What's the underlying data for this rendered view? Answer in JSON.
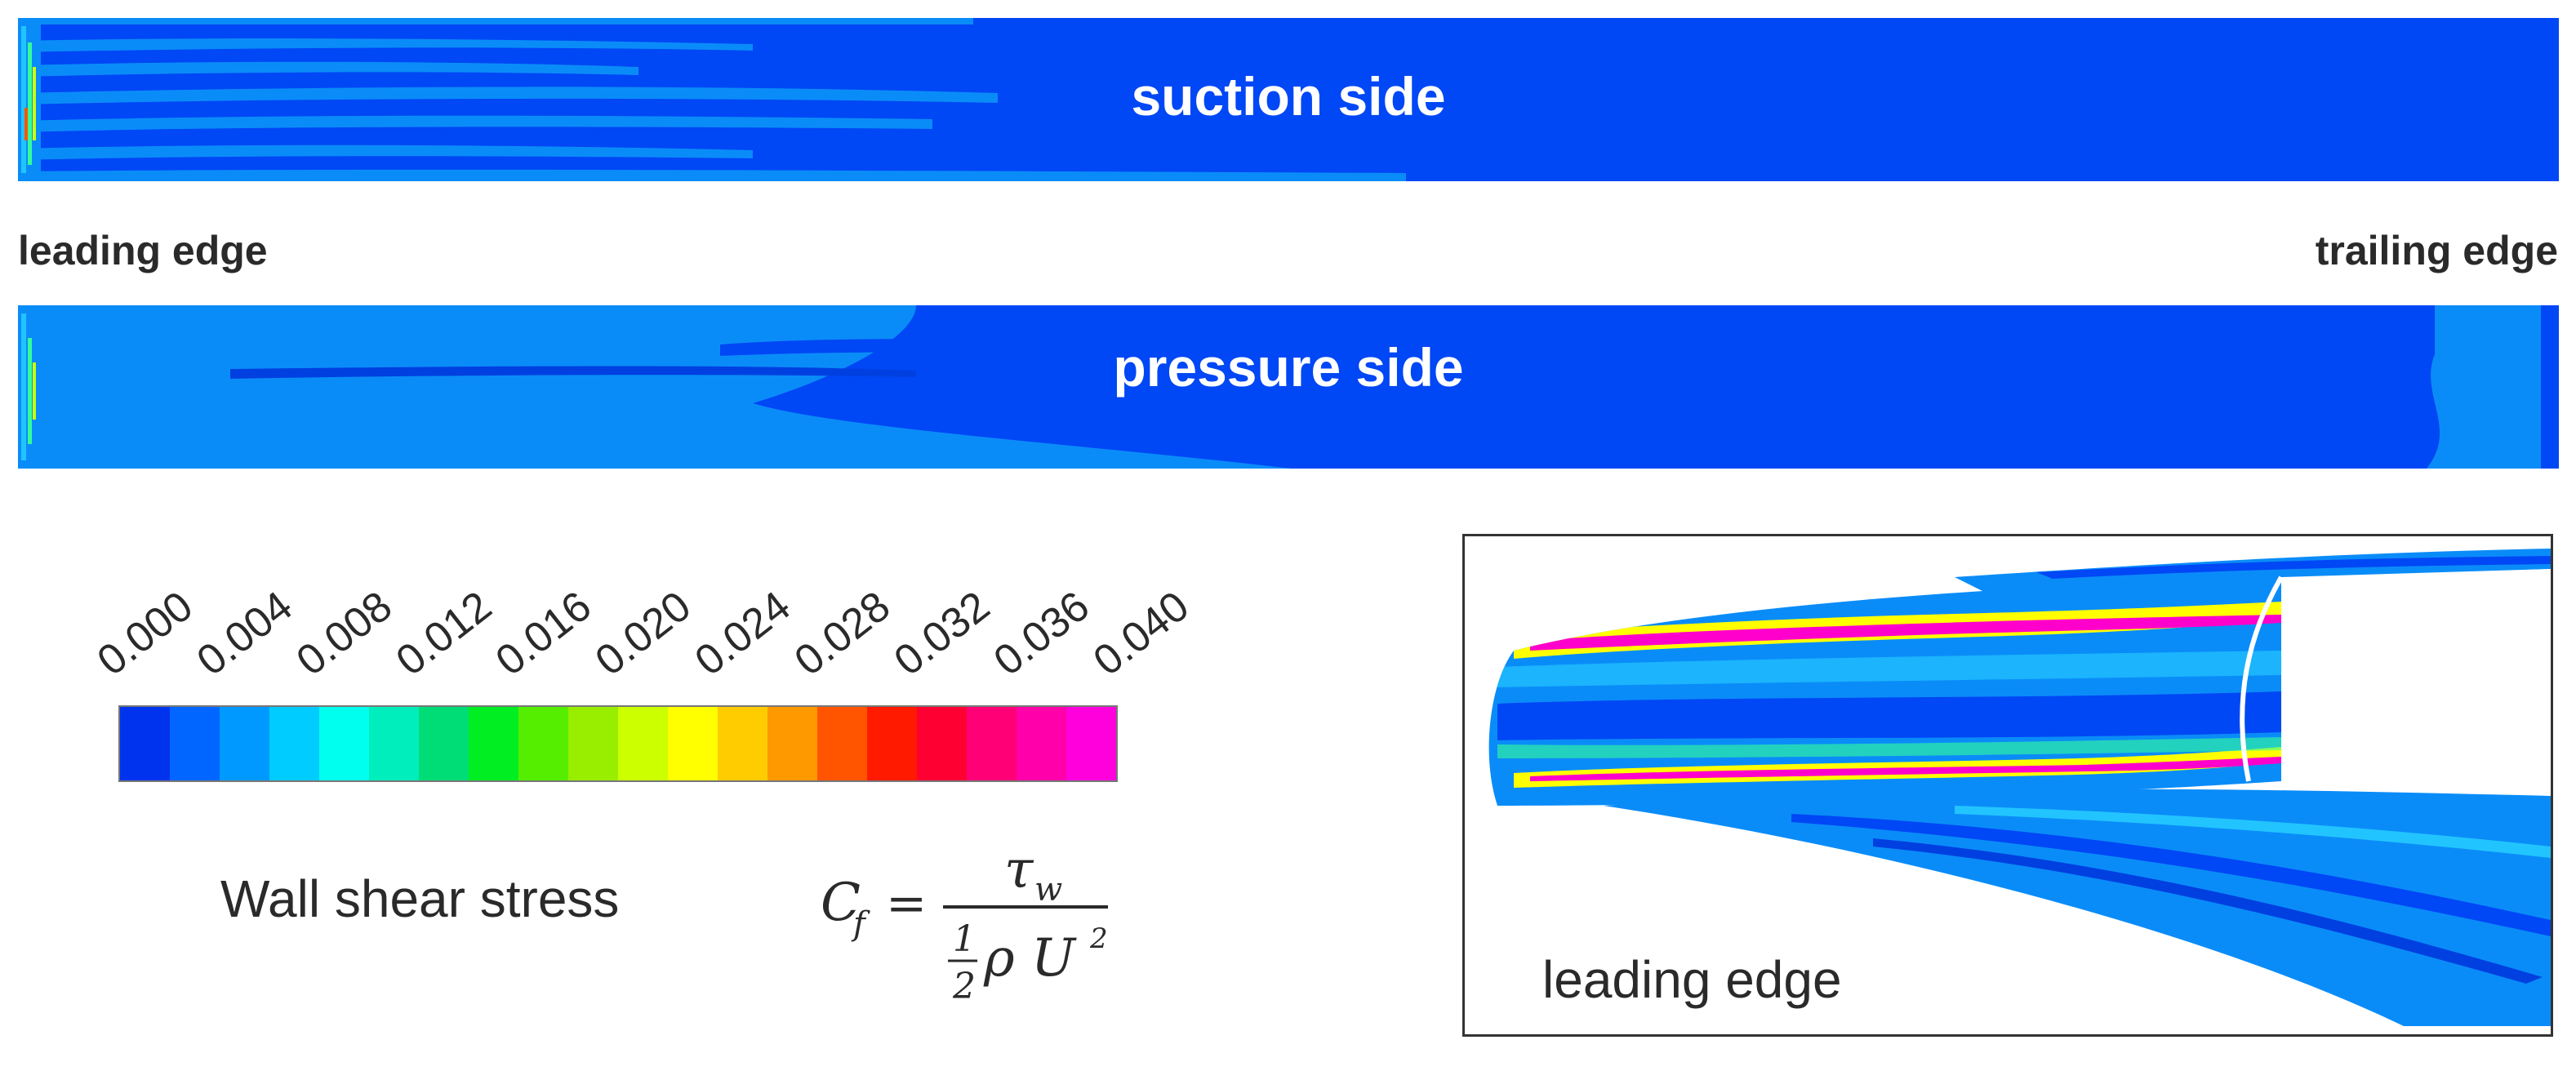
{
  "suction_label": "suction side",
  "pressure_label": "pressure side",
  "leading_edge": "leading edge",
  "trailing_edge": "trailing edge",
  "legend": {
    "ticks": [
      "0.000",
      "0.004",
      "0.008",
      "0.012",
      "0.016",
      "0.020",
      "0.024",
      "0.028",
      "0.032",
      "0.036",
      "0.040"
    ],
    "colors": [
      "#0033ee",
      "#0066ff",
      "#0099ff",
      "#00ccff",
      "#00ffee",
      "#00eebb",
      "#00dd77",
      "#00ee22",
      "#55ee00",
      "#99ee00",
      "#ccff00",
      "#ffff00",
      "#ffcc00",
      "#ff9900",
      "#ff5500",
      "#ff1a00",
      "#ff0033",
      "#ff0077",
      "#ff00aa",
      "#ff00dd"
    ],
    "quantity_label": "Wall shear stress",
    "formula": {
      "lhs": "C",
      "lhs_sub": "f",
      "equals": "=",
      "numerator": "τ",
      "numerator_sub": "w",
      "den_num": "1",
      "den_den": "2",
      "den_rest": "ρ U",
      "den_sup": "2"
    }
  },
  "inset_label": "leading edge"
}
